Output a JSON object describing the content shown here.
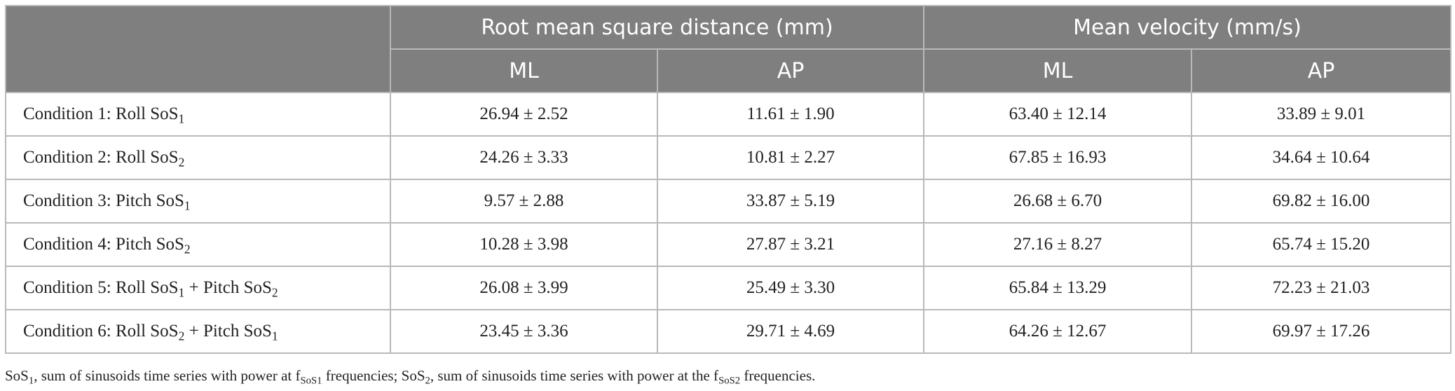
{
  "table": {
    "header": {
      "group_corner": "",
      "groups": [
        "Root mean square distance (mm)",
        "Mean velocity (mm/s)"
      ],
      "subheaders": [
        "ML",
        "AP",
        "ML",
        "AP"
      ]
    },
    "rows": [
      {
        "label": [
          "Condition 1: Roll SoS",
          "1"
        ],
        "cells": [
          "26.94 ± 2.52",
          "11.61 ± 1.90",
          "63.40 ± 12.14",
          "33.89 ± 9.01"
        ]
      },
      {
        "label": [
          "Condition 2: Roll SoS",
          "2"
        ],
        "cells": [
          "24.26 ± 3.33",
          "10.81 ± 2.27",
          "67.85 ± 16.93",
          "34.64 ± 10.64"
        ]
      },
      {
        "label": [
          "Condition 3: Pitch SoS",
          "1"
        ],
        "cells": [
          "9.57 ± 2.88",
          "33.87 ± 5.19",
          "26.68 ± 6.70",
          "69.82 ± 16.00"
        ]
      },
      {
        "label": [
          "Condition 4: Pitch SoS",
          "2"
        ],
        "cells": [
          "10.28 ± 3.98",
          "27.87 ± 3.21",
          "27.16 ± 8.27",
          "65.74 ± 15.20"
        ]
      },
      {
        "label": [
          "Condition 5: Roll SoS",
          "1",
          " + Pitch SoS",
          "2"
        ],
        "cells": [
          "26.08 ± 3.99",
          "25.49 ± 3.30",
          "65.84 ± 13.29",
          "72.23 ± 21.03"
        ]
      },
      {
        "label": [
          "Condition 6: Roll SoS",
          "2",
          " + Pitch SoS",
          "1"
        ],
        "cells": [
          "23.45 ± 3.36",
          "29.71 ± 4.69",
          "64.26 ± 12.67",
          "69.97 ± 17.26"
        ]
      }
    ],
    "footnote": [
      "SoS",
      "1",
      ", sum of sinusoids time series with power at f",
      "SoS1",
      " frequencies; SoS",
      "2",
      ", sum of sinusoids time series with power at the f",
      "SoS2",
      " frequencies."
    ]
  }
}
